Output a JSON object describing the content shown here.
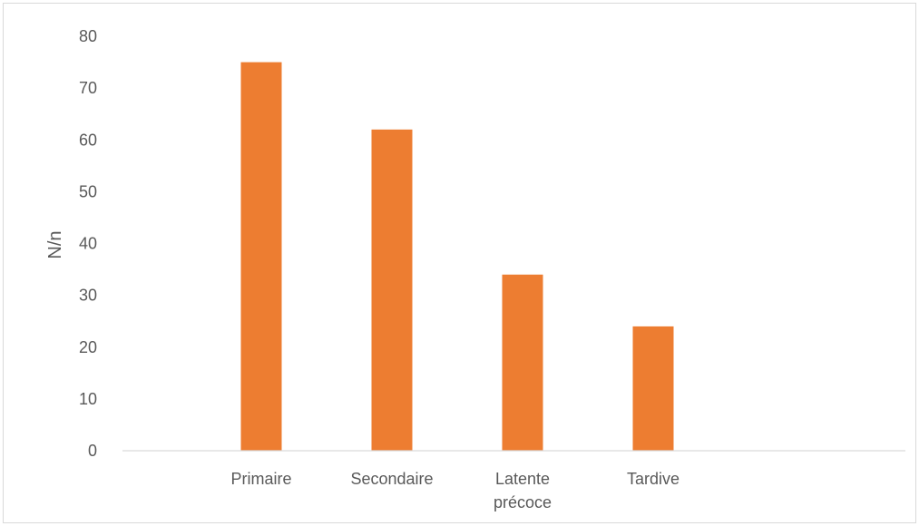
{
  "chart_data": {
    "type": "bar",
    "title": "",
    "xlabel": "",
    "ylabel": "N/n",
    "categories": [
      [
        "Primaire"
      ],
      [
        "Secondaire"
      ],
      [
        "Latente",
        "précoce"
      ],
      [
        "Tardive"
      ]
    ],
    "values": [
      75,
      62,
      34,
      24
    ],
    "ylim": [
      0,
      80
    ],
    "ytick_step": 10,
    "grid": false,
    "legend": "none",
    "colors": {
      "bar": "#ed7d31",
      "text": "#595959",
      "axis": "#d9d9d9"
    }
  }
}
